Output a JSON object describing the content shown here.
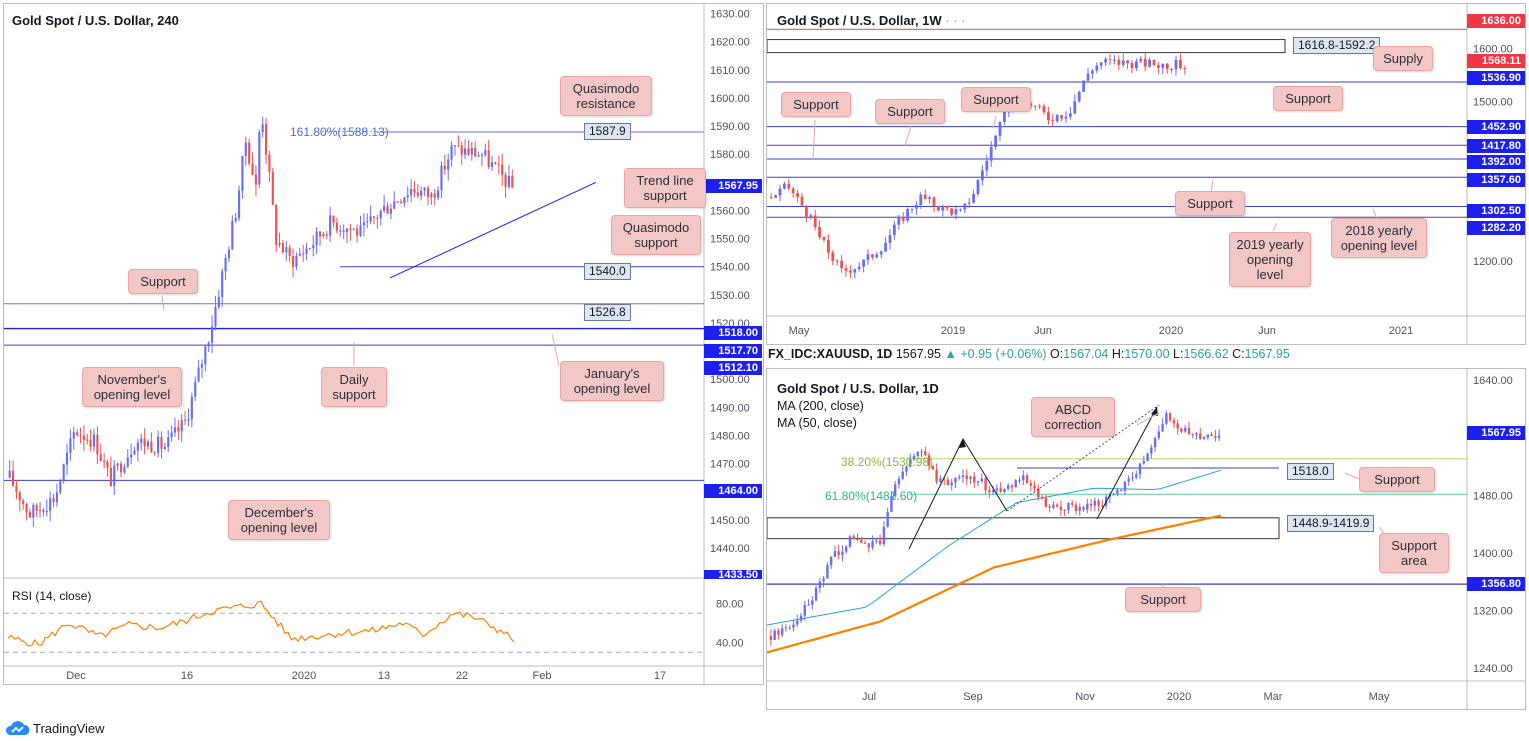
{
  "colors": {
    "bull": "#6b6ef5",
    "bear": "#ef5350",
    "level_line": "#3a3fcf",
    "level_tag": "#1d1ef0",
    "red_tag": "#f23645",
    "rsi": "#ff8000",
    "ma200": "#ff7f00",
    "ma50": "#2aa2e0",
    "fib382": "#b0d86a",
    "fib618": "#5fcf9e",
    "callout_bg": "#f4c7c7"
  },
  "footer": {
    "brand": "TradingView"
  },
  "chart_data": [
    {
      "id": "gold-240",
      "type": "candlestick",
      "title": "Gold Spot / U.S. Dollar, 240",
      "ylim": [
        1430,
        1632
      ],
      "y_ticks": [
        "1630.00",
        "1620.00",
        "1610.00",
        "1600.00",
        "1590.00",
        "1580.00",
        "1570.00",
        "1560.00",
        "1550.00",
        "1540.00",
        "1530.00",
        "1520.00",
        "1510.00",
        "1500.00",
        "1490.00",
        "1480.00",
        "1470.00",
        "1460.00",
        "1450.00",
        "1440.00"
      ],
      "x_ticks": [
        "Dec",
        "16",
        "2020",
        "13",
        "22",
        "Feb",
        "17"
      ],
      "last_price": {
        "value": 1567.95,
        "label": "1567.95"
      },
      "levels": [
        {
          "value": 1518.0,
          "label": "1518.00"
        },
        {
          "value": 1517.7,
          "label": "1517.70"
        },
        {
          "value": 1512.1,
          "label": "1512.10"
        },
        {
          "value": 1464.0,
          "label": "1464.00"
        },
        {
          "value": 1433.5,
          "label": "1433.50"
        }
      ],
      "h_lines": [
        {
          "value": 1587.9,
          "label": "1587.9"
        },
        {
          "value": 1540.0,
          "label": "1540.0"
        },
        {
          "value": 1526.8,
          "label": "1526.8"
        }
      ],
      "fib_label": "161.80%(1588.13)",
      "trend_line": {
        "from": 1536,
        "to": 1570
      },
      "annotations": [
        "Quasimodo resistance",
        "Trend line support",
        "Quasimodo support",
        "Support",
        "November's opening level",
        "Daily support",
        "January's opening level",
        "December's opening level"
      ],
      "anchors": [
        {
          "t": 0,
          "v": 1465
        },
        {
          "t": 0.04,
          "v": 1452
        },
        {
          "t": 0.09,
          "v": 1458
        },
        {
          "t": 0.13,
          "v": 1482
        },
        {
          "t": 0.17,
          "v": 1478
        },
        {
          "t": 0.2,
          "v": 1464
        },
        {
          "t": 0.25,
          "v": 1478
        },
        {
          "t": 0.31,
          "v": 1476
        },
        {
          "t": 0.35,
          "v": 1485
        },
        {
          "t": 0.4,
          "v": 1518
        },
        {
          "t": 0.45,
          "v": 1560
        },
        {
          "t": 0.47,
          "v": 1585
        },
        {
          "t": 0.49,
          "v": 1568
        },
        {
          "t": 0.5,
          "v": 1598
        },
        {
          "t": 0.53,
          "v": 1550
        },
        {
          "t": 0.56,
          "v": 1542
        },
        {
          "t": 0.6,
          "v": 1548
        },
        {
          "t": 0.64,
          "v": 1556
        },
        {
          "t": 0.7,
          "v": 1552
        },
        {
          "t": 0.74,
          "v": 1560
        },
        {
          "t": 0.8,
          "v": 1568
        },
        {
          "t": 0.84,
          "v": 1565
        },
        {
          "t": 0.88,
          "v": 1582
        },
        {
          "t": 0.94,
          "v": 1580
        },
        {
          "t": 1,
          "v": 1568
        }
      ],
      "rsi": {
        "label": "RSI (14, close)",
        "ylim": [
          20,
          100
        ],
        "ticks": [
          "80.00",
          "40.00"
        ],
        "bands": [
          70,
          30
        ],
        "anchors": [
          {
            "t": 0,
            "v": 45
          },
          {
            "t": 0.06,
            "v": 38
          },
          {
            "t": 0.12,
            "v": 60
          },
          {
            "t": 0.18,
            "v": 46
          },
          {
            "t": 0.24,
            "v": 58
          },
          {
            "t": 0.3,
            "v": 55
          },
          {
            "t": 0.35,
            "v": 62
          },
          {
            "t": 0.4,
            "v": 72
          },
          {
            "t": 0.45,
            "v": 76
          },
          {
            "t": 0.5,
            "v": 80
          },
          {
            "t": 0.52,
            "v": 68
          },
          {
            "t": 0.56,
            "v": 44
          },
          {
            "t": 0.6,
            "v": 46
          },
          {
            "t": 0.66,
            "v": 50
          },
          {
            "t": 0.72,
            "v": 52
          },
          {
            "t": 0.78,
            "v": 60
          },
          {
            "t": 0.82,
            "v": 48
          },
          {
            "t": 0.88,
            "v": 70
          },
          {
            "t": 0.92,
            "v": 66
          },
          {
            "t": 0.96,
            "v": 56
          },
          {
            "t": 1,
            "v": 43
          }
        ]
      }
    },
    {
      "id": "gold-weekly",
      "type": "candlestick",
      "title": "Gold Spot / U.S. Dollar, 1W",
      "ylim": [
        1100,
        1680
      ],
      "y_ticks": [
        "1600.00",
        "1500.00",
        "1200.00"
      ],
      "x_ticks": [
        "May",
        "2019",
        "Jun",
        "2020",
        "Jun",
        "2021"
      ],
      "last_price": {
        "value": 1568.11,
        "label": "1568.11"
      },
      "levels": [
        {
          "value": 1636.0,
          "label": "1636.00",
          "color": "red"
        },
        {
          "value": 1536.9,
          "label": "1536.90"
        },
        {
          "value": 1452.9,
          "label": "1452.90"
        },
        {
          "value": 1417.8,
          "label": "1417.80"
        },
        {
          "value": 1392.0,
          "label": "1392.00"
        },
        {
          "value": 1357.6,
          "label": "1357.60"
        },
        {
          "value": 1302.5,
          "label": "1302.50"
        },
        {
          "value": 1282.2,
          "label": "1282.20"
        }
      ],
      "supply_zone": {
        "high": 1616.8,
        "low": 1592.2,
        "label": "1616.8-1592.2"
      },
      "annotations": [
        "Supply",
        "Support",
        "Support",
        "Support",
        "Support",
        "Support",
        "2019 yearly opening level",
        "2018 yearly opening level"
      ],
      "anchors": [
        {
          "t": 0,
          "v": 1320
        },
        {
          "t": 0.04,
          "v": 1340
        },
        {
          "t": 0.08,
          "v": 1300
        },
        {
          "t": 0.12,
          "v": 1240
        },
        {
          "t": 0.17,
          "v": 1180
        },
        {
          "t": 0.22,
          "v": 1195
        },
        {
          "t": 0.27,
          "v": 1230
        },
        {
          "t": 0.32,
          "v": 1285
        },
        {
          "t": 0.36,
          "v": 1320
        },
        {
          "t": 0.41,
          "v": 1300
        },
        {
          "t": 0.46,
          "v": 1290
        },
        {
          "t": 0.49,
          "v": 1330
        },
        {
          "t": 0.53,
          "v": 1410
        },
        {
          "t": 0.58,
          "v": 1500
        },
        {
          "t": 0.63,
          "v": 1495
        },
        {
          "t": 0.67,
          "v": 1470
        },
        {
          "t": 0.72,
          "v": 1480
        },
        {
          "t": 0.77,
          "v": 1560
        },
        {
          "t": 0.8,
          "v": 1575
        },
        {
          "t": 1,
          "v": 1568
        }
      ]
    },
    {
      "id": "gold-daily",
      "type": "candlestick",
      "title": "Gold Spot / U.S. Dollar, 1D",
      "symbol": "FX_IDC:XAUUSD, 1D",
      "ohlc": {
        "last": "1567.95",
        "change": "+0.95 (+0.06%)",
        "O": "1567.04",
        "H": "1570.00",
        "L": "1566.62",
        "C": "1567.95"
      },
      "legend": [
        "MA (200, close)",
        "MA (50, close)"
      ],
      "ylim": [
        1225,
        1650
      ],
      "y_ticks": [
        "1640.00",
        "1480.00",
        "1400.00",
        "1320.00",
        "1240.00"
      ],
      "x_ticks": [
        "Jul",
        "Sep",
        "Nov",
        "2020",
        "Mar",
        "May"
      ],
      "last_price": {
        "value": 1567.95,
        "label": "1567.95"
      },
      "levels": [
        {
          "value": 1356.8,
          "label": "1356.80"
        }
      ],
      "h_lines": [
        {
          "value": 1518.0,
          "label": "1518.0"
        }
      ],
      "fibs": [
        {
          "value": 1530.98,
          "label": "38.20%(1530.98)"
        },
        {
          "value": 1481.6,
          "label": "61.80%(1481.60)"
        }
      ],
      "support_zone": {
        "high": 1448.9,
        "low": 1419.9,
        "label": "1448.9-1419.9"
      },
      "annotations": [
        "ABCD correction",
        "Support",
        "Support area",
        "Support"
      ],
      "ma200": [
        {
          "t": 0,
          "v": 1262
        },
        {
          "t": 0.25,
          "v": 1305
        },
        {
          "t": 0.5,
          "v": 1380
        },
        {
          "t": 0.75,
          "v": 1418
        },
        {
          "t": 1,
          "v": 1452
        }
      ],
      "ma50": [
        {
          "t": 0,
          "v": 1300
        },
        {
          "t": 0.22,
          "v": 1325
        },
        {
          "t": 0.4,
          "v": 1410
        },
        {
          "t": 0.55,
          "v": 1470
        },
        {
          "t": 0.72,
          "v": 1490
        },
        {
          "t": 0.86,
          "v": 1488
        },
        {
          "t": 1,
          "v": 1515
        }
      ],
      "anchors": [
        {
          "t": 0,
          "v": 1285
        },
        {
          "t": 0.05,
          "v": 1300
        },
        {
          "t": 0.1,
          "v": 1345
        },
        {
          "t": 0.14,
          "v": 1395
        },
        {
          "t": 0.18,
          "v": 1420
        },
        {
          "t": 0.24,
          "v": 1410
        },
        {
          "t": 0.28,
          "v": 1500
        },
        {
          "t": 0.33,
          "v": 1545
        },
        {
          "t": 0.38,
          "v": 1495
        },
        {
          "t": 0.44,
          "v": 1510
        },
        {
          "t": 0.5,
          "v": 1485
        },
        {
          "t": 0.56,
          "v": 1505
        },
        {
          "t": 0.62,
          "v": 1460
        },
        {
          "t": 0.7,
          "v": 1465
        },
        {
          "t": 0.76,
          "v": 1475
        },
        {
          "t": 0.82,
          "v": 1520
        },
        {
          "t": 0.88,
          "v": 1590
        },
        {
          "t": 0.94,
          "v": 1560
        },
        {
          "t": 1,
          "v": 1568
        }
      ]
    }
  ]
}
